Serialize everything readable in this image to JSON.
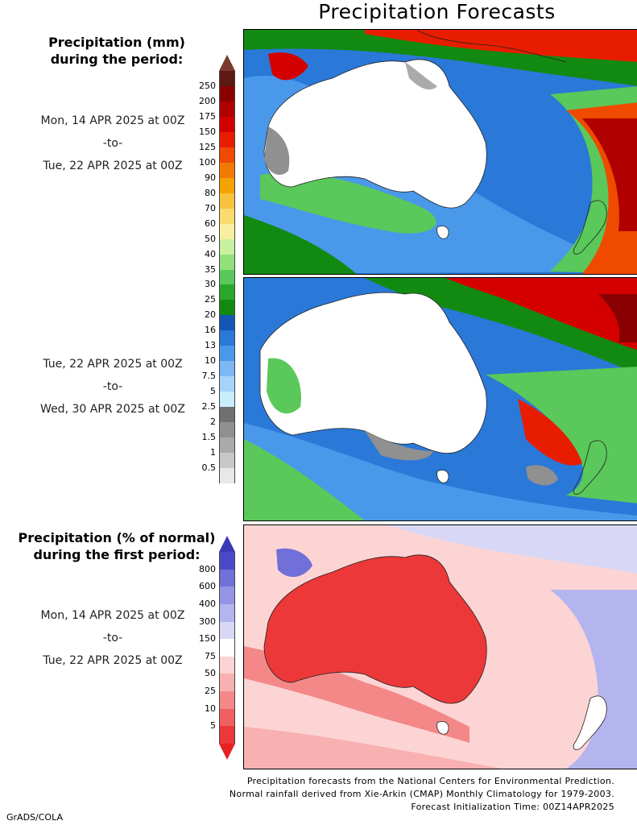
{
  "title": "Precipitation Forecasts",
  "precip_heading": "Precipitation (mm)\nduring the period:",
  "period1": {
    "start": "Mon, 14 APR 2025 at 00Z",
    "sep": "-to-",
    "end": "Tue, 22 APR 2025 at 00Z"
  },
  "period2": {
    "start": "Tue, 22 APR 2025 at 00Z",
    "sep": "-to-",
    "end": "Wed, 30 APR 2025 at 00Z"
  },
  "anomaly_heading": "Precipitation (% of normal)\nduring the first period:",
  "period3": {
    "start": "Mon, 14 APR 2025 at 00Z",
    "sep": "-to-",
    "end": "Tue, 22 APR 2025 at 00Z"
  },
  "mm_scale": {
    "labels": [
      "250",
      "200",
      "175",
      "150",
      "125",
      "100",
      "90",
      "80",
      "70",
      "60",
      "50",
      "40",
      "35",
      "30",
      "25",
      "20",
      "16",
      "13",
      "10",
      "7.5",
      "5",
      "2.5",
      "2",
      "1.5",
      "1",
      "0.5"
    ],
    "colors": [
      "#5c1a12",
      "#8a0000",
      "#b00000",
      "#d40000",
      "#e81c00",
      "#f04a00",
      "#f27a00",
      "#f4a300",
      "#f8c33c",
      "#fadc6e",
      "#f8f0a0",
      "#c8f0a0",
      "#92e07a",
      "#5ac85a",
      "#2aa82a",
      "#128a12",
      "#1456b4",
      "#2a78d8",
      "#4a98ea",
      "#7cb8f4",
      "#a4d4fa",
      "#c8eefc",
      "#707070",
      "#909090",
      "#aaaaaa",
      "#c8c8c8",
      "#e8e8e8"
    ],
    "top_cap": "#7a3a30",
    "bottom_cap": "#ffffff"
  },
  "pct_scale": {
    "labels": [
      "800",
      "600",
      "400",
      "300",
      "150",
      "75",
      "50",
      "25",
      "10",
      "5"
    ],
    "colors": [
      "#4a4ac8",
      "#7070d8",
      "#9494e4",
      "#b4b4ee",
      "#d8d8f6",
      "#ffffff",
      "#fcd4d4",
      "#f8b0b0",
      "#f48888",
      "#f06060",
      "#ec3838"
    ],
    "top_cap": "#3a3ab8",
    "bottom_cap": "#e82020"
  },
  "footer": {
    "line1": "Precipitation forecasts from the National Centers for Environmental Prediction.",
    "line2": "Normal rainfall derived from Xie-Arkin (CMAP) Monthly Climatology for 1979-2003.",
    "line3": "Forecast Initialization Time: 00Z14APR2025"
  },
  "credit": "GrADS/COLA"
}
